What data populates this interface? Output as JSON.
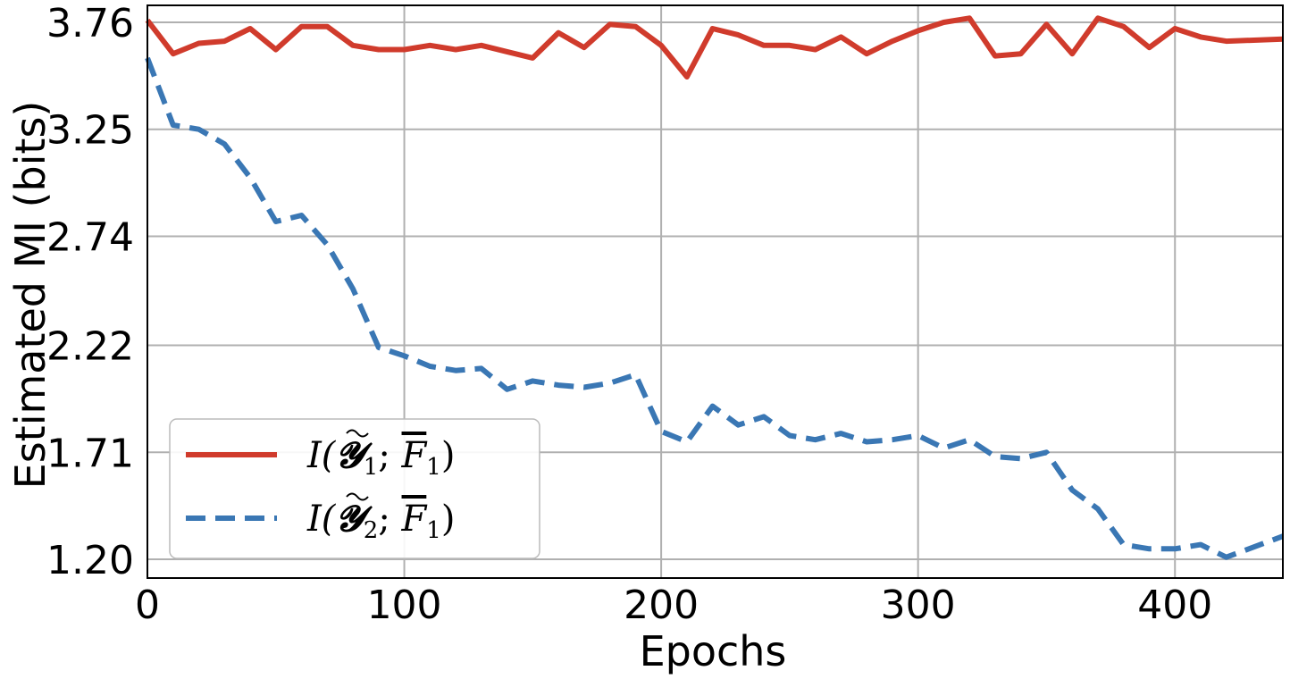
{
  "chart_data": {
    "type": "line",
    "xlabel": "Epochs",
    "ylabel": "Estimated MI (bits)",
    "xlim": [
      0,
      442
    ],
    "ylim": [
      1.2,
      3.76
    ],
    "x_ticks": [
      0,
      100,
      200,
      300,
      400
    ],
    "x_tick_labels": [
      "0",
      "100",
      "200",
      "300",
      "400"
    ],
    "y_ticks": [
      1.2,
      1.71,
      2.22,
      2.74,
      3.25,
      3.76
    ],
    "y_tick_labels": [
      "1.20",
      "1.71",
      "2.22",
      "2.74",
      "3.25",
      "3.76"
    ],
    "grid": true,
    "legend_position": "lower-left",
    "x": [
      0,
      10,
      20,
      30,
      40,
      50,
      60,
      70,
      80,
      90,
      100,
      110,
      120,
      130,
      140,
      150,
      160,
      170,
      180,
      190,
      200,
      210,
      220,
      230,
      240,
      250,
      260,
      270,
      280,
      290,
      300,
      310,
      320,
      330,
      340,
      350,
      360,
      370,
      380,
      390,
      400,
      410,
      420,
      442
    ],
    "series": [
      {
        "name": "I(Y~1; F1)",
        "legend": {
          "italic_prefix": "I(",
          "symbol": "𝓨",
          "subscript": "1",
          "mid": ";",
          "bar_letter": "F",
          "bar_sub": "1",
          "close": ")"
        },
        "color": "#d03b2c",
        "style": "solid",
        "values": [
          3.77,
          3.61,
          3.66,
          3.67,
          3.73,
          3.63,
          3.74,
          3.74,
          3.65,
          3.63,
          3.63,
          3.65,
          3.63,
          3.65,
          3.62,
          3.59,
          3.71,
          3.64,
          3.75,
          3.74,
          3.65,
          3.5,
          3.73,
          3.7,
          3.65,
          3.65,
          3.63,
          3.69,
          3.61,
          3.67,
          3.72,
          3.76,
          3.78,
          3.6,
          3.61,
          3.75,
          3.61,
          3.78,
          3.74,
          3.64,
          3.73,
          3.69,
          3.67,
          3.68
        ]
      },
      {
        "name": "I(Y~2; F1)",
        "legend": {
          "italic_prefix": "I(",
          "symbol": "𝓨",
          "subscript": "2",
          "mid": ";",
          "bar_letter": "F",
          "bar_sub": "1",
          "close": ")"
        },
        "color": "#3a77b4",
        "style": "dashed",
        "values": [
          3.59,
          3.27,
          3.25,
          3.18,
          3.02,
          2.81,
          2.84,
          2.7,
          2.49,
          2.21,
          2.17,
          2.12,
          2.1,
          2.11,
          2.01,
          2.05,
          2.03,
          2.02,
          2.04,
          2.08,
          1.81,
          1.76,
          1.93,
          1.84,
          1.88,
          1.79,
          1.77,
          1.8,
          1.76,
          1.77,
          1.79,
          1.73,
          1.77,
          1.69,
          1.68,
          1.71,
          1.53,
          1.44,
          1.27,
          1.25,
          1.25,
          1.27,
          1.21,
          1.31
        ]
      }
    ]
  }
}
